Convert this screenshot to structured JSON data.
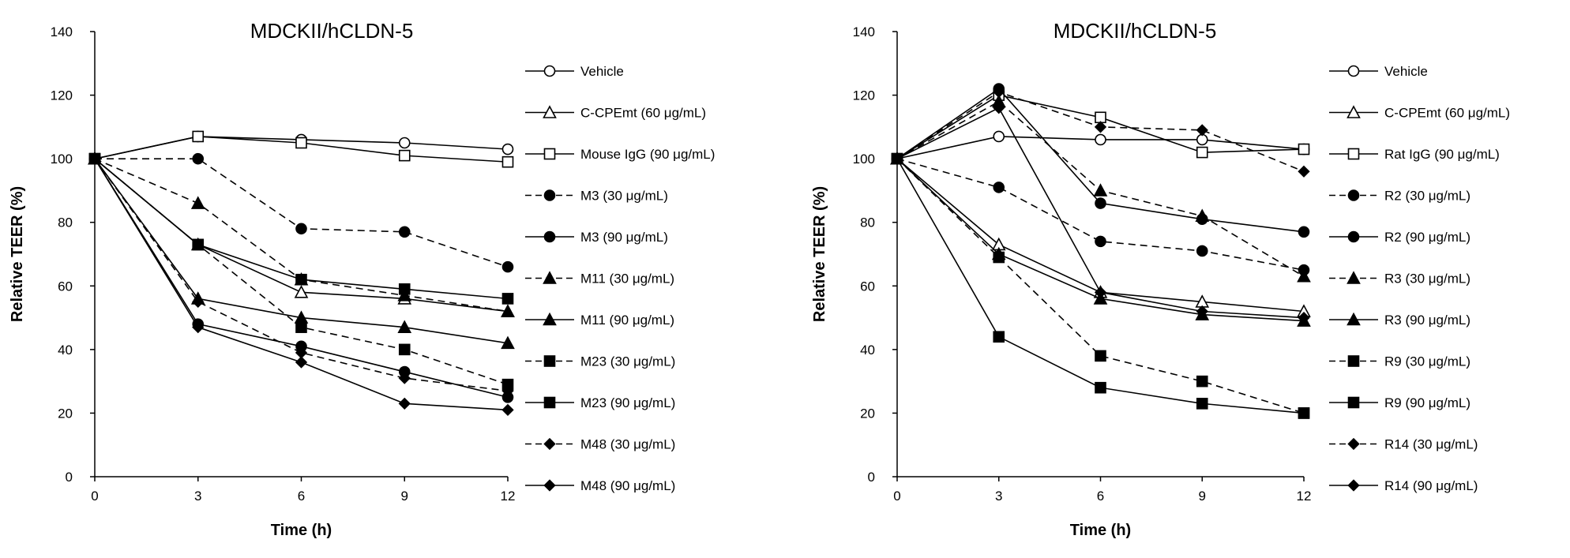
{
  "chart_data": [
    {
      "type": "line",
      "title": "MDCKII/hCLDN-5",
      "xlabel": "Time (h)",
      "ylabel": "Relative TEER (%)",
      "x": [
        0,
        3,
        6,
        9,
        12
      ],
      "xticks": [
        "0",
        "3",
        "6",
        "9",
        "12"
      ],
      "yticks": [
        "0",
        "20",
        "40",
        "60",
        "80",
        "100",
        "120",
        "140"
      ],
      "xlim": [
        0,
        12
      ],
      "ylim": [
        0,
        140
      ],
      "legend_position": "right",
      "grid": false,
      "series": [
        {
          "name": "Vehicle",
          "marker": "circle-open",
          "dash": "solid",
          "values": [
            100,
            107,
            106,
            105,
            103
          ]
        },
        {
          "name": "C-CPEmt (60 μg/mL)",
          "marker": "triangle-open",
          "dash": "solid",
          "values": [
            100,
            73,
            58,
            56,
            52
          ]
        },
        {
          "name": "Mouse IgG (90 μg/mL)",
          "marker": "square-open",
          "dash": "solid",
          "values": [
            100,
            107,
            105,
            101,
            99
          ]
        },
        {
          "name": "M3 (30 μg/mL)",
          "marker": "circle",
          "dash": "dashed",
          "values": [
            100,
            100,
            78,
            77,
            66
          ]
        },
        {
          "name": "M3 (90 μg/mL)",
          "marker": "circle",
          "dash": "solid",
          "values": [
            100,
            48,
            41,
            33,
            25
          ]
        },
        {
          "name": "M11 (30 μg/mL)",
          "marker": "triangle",
          "dash": "dashed",
          "values": [
            100,
            86,
            62,
            57,
            52
          ]
        },
        {
          "name": "M11 (90 μg/mL)",
          "marker": "triangle",
          "dash": "solid",
          "values": [
            100,
            56,
            50,
            47,
            42
          ]
        },
        {
          "name": "M23 (30 μg/mL)",
          "marker": "square",
          "dash": "dashed",
          "values": [
            100,
            73,
            47,
            40,
            29
          ]
        },
        {
          "name": "M23 (90 μg/mL)",
          "marker": "square",
          "dash": "solid",
          "values": [
            100,
            73,
            62,
            59,
            56
          ]
        },
        {
          "name": "M48 (30 μg/mL)",
          "marker": "diamond",
          "dash": "dashed",
          "values": [
            100,
            55,
            39,
            31,
            27
          ]
        },
        {
          "name": "M48 (90 μg/mL)",
          "marker": "diamond",
          "dash": "solid",
          "values": [
            100,
            47,
            36,
            23,
            21
          ]
        }
      ]
    },
    {
      "type": "line",
      "title": "MDCKII/hCLDN-5",
      "xlabel": "Time (h)",
      "ylabel": "Relative TEER (%)",
      "x": [
        0,
        3,
        6,
        9,
        12
      ],
      "xticks": [
        "0",
        "3",
        "6",
        "9",
        "12"
      ],
      "yticks": [
        "0",
        "20",
        "40",
        "60",
        "80",
        "100",
        "120",
        "140"
      ],
      "xlim": [
        0,
        12
      ],
      "ylim": [
        0,
        140
      ],
      "legend_position": "right",
      "grid": false,
      "series": [
        {
          "name": "Vehicle",
          "marker": "circle-open",
          "dash": "solid",
          "values": [
            100,
            107,
            106,
            106,
            103
          ]
        },
        {
          "name": "C-CPEmt (60 μg/mL)",
          "marker": "triangle-open",
          "dash": "solid",
          "values": [
            100,
            73,
            58,
            55,
            52
          ]
        },
        {
          "name": "Rat IgG (90 μg/mL)",
          "marker": "square-open",
          "dash": "solid",
          "values": [
            100,
            120,
            113,
            102,
            103
          ]
        },
        {
          "name": "R2 (30 μg/mL)",
          "marker": "circle",
          "dash": "dashed",
          "values": [
            100,
            91,
            74,
            71,
            65
          ]
        },
        {
          "name": "R2 (90 μg/mL)",
          "marker": "circle",
          "dash": "solid",
          "values": [
            100,
            122,
            86,
            81,
            77
          ]
        },
        {
          "name": "R3 (30 μg/mL)",
          "marker": "triangle",
          "dash": "dashed",
          "values": [
            100,
            118,
            90,
            82,
            63
          ]
        },
        {
          "name": "R3 (90 μg/mL)",
          "marker": "triangle",
          "dash": "solid",
          "values": [
            100,
            70,
            56,
            51,
            49
          ]
        },
        {
          "name": "R9 (30 μg/mL)",
          "marker": "square",
          "dash": "dashed",
          "values": [
            100,
            69,
            38,
            30,
            20
          ]
        },
        {
          "name": "R9 (90 μg/mL)",
          "marker": "square",
          "dash": "solid",
          "values": [
            100,
            44,
            28,
            23,
            20
          ]
        },
        {
          "name": "R14 (30 μg/mL)",
          "marker": "diamond",
          "dash": "dashed",
          "values": [
            100,
            121,
            110,
            109,
            96
          ]
        },
        {
          "name": "R14 (90 μg/mL)",
          "marker": "diamond",
          "dash": "solid",
          "values": [
            100,
            116,
            58,
            52,
            50
          ]
        }
      ]
    }
  ]
}
